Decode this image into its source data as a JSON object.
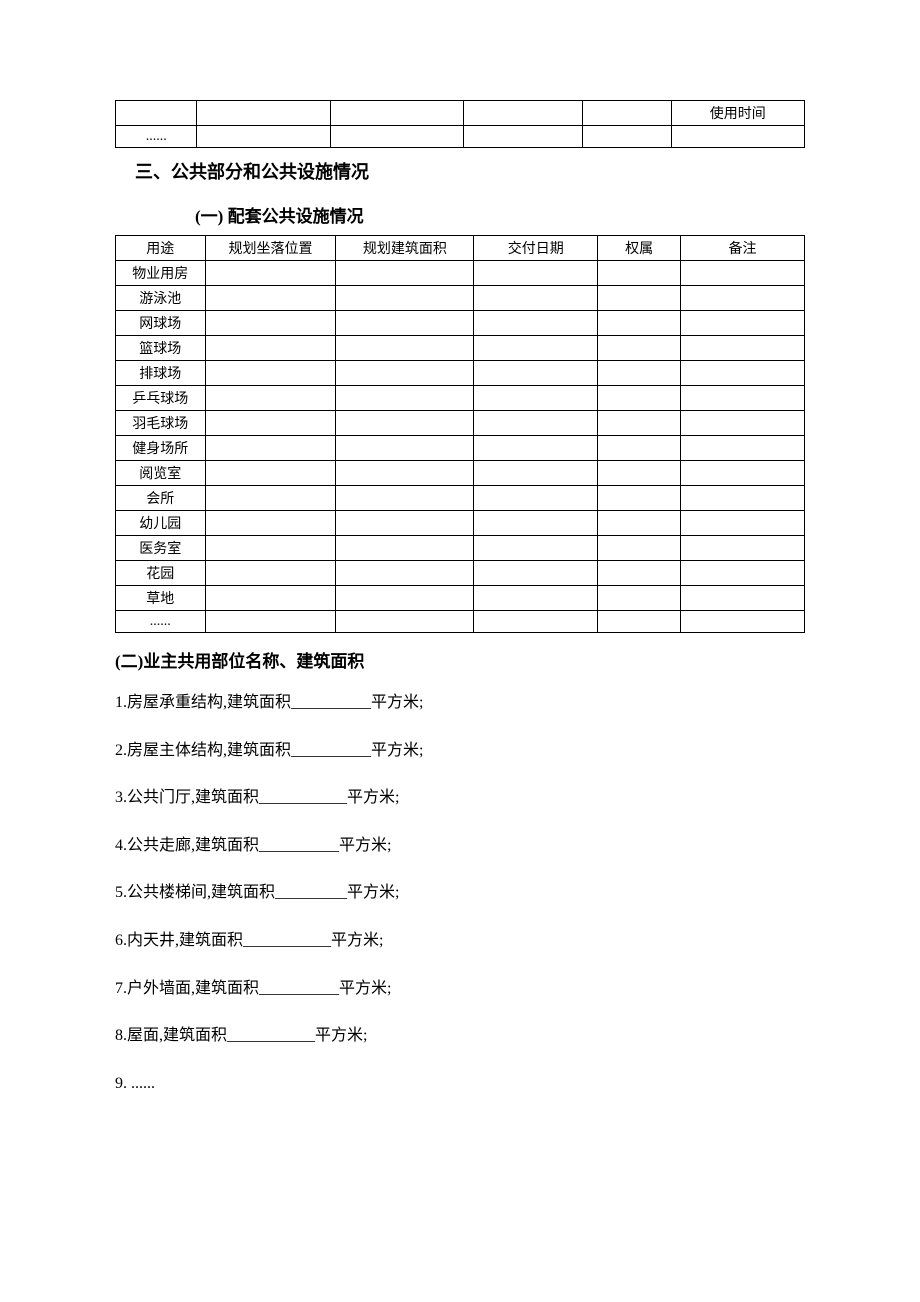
{
  "top_table": {
    "rows": [
      {
        "cells": [
          "",
          "",
          "",
          "",
          "",
          "使用时间"
        ]
      },
      {
        "cells": [
          "......",
          "",
          "",
          "",
          "",
          ""
        ]
      }
    ]
  },
  "heading_section3": "三、公共部分和公共设施情况",
  "heading_sub1": "(一) 配套公共设施情况",
  "facilities_table": {
    "headers": [
      "用途",
      "规划坐落位置",
      "规划建筑面积",
      "交付日期",
      "权属",
      "备注"
    ],
    "rows": [
      "物业用房",
      "游泳池",
      "网球场",
      "篮球场",
      "排球场",
      "乒乓球场",
      "羽毛球场",
      "健身场所",
      "阅览室",
      "会所",
      "幼儿园",
      "医务室",
      "花园",
      "草地",
      "......"
    ]
  },
  "heading_sub2": "(二)业主共用部位名称、建筑面积",
  "lines": [
    "1.房屋承重结构,建筑面积__________平方米;",
    "2.房屋主体结构,建筑面积__________平方米;",
    "3.公共门厅,建筑面积___________平方米;",
    "4.公共走廊,建筑面积__________平方米;",
    "5.公共楼梯间,建筑面积_________平方米;",
    "6.内天井,建筑面积___________平方米;",
    "7.户外墙面,建筑面积__________平方米;",
    "8.屋面,建筑面积___________平方米;",
    "9.    ......"
  ]
}
